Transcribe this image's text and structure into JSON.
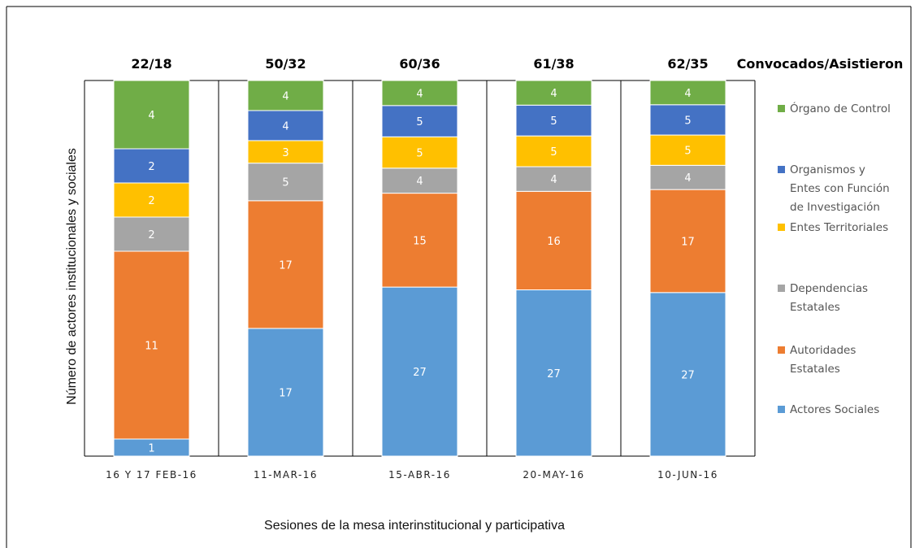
{
  "chart_data": {
    "type": "bar",
    "stacked": true,
    "title": "",
    "xlabel": "Sesiones de la mesa interinstitucional  y participativa",
    "ylabel": "Número de actores institucionales  y sociales",
    "categories": [
      "16 Y 17 FEB-16",
      "11-MAR-16",
      "15-ABR-16",
      "20-MAY-16",
      "10-JUN-16"
    ],
    "totals_header": "Convocados/Asistieron",
    "totals": [
      "22/18",
      "50/32",
      "60/36",
      "61/38",
      "62/35"
    ],
    "series": [
      {
        "name": "Actores Sociales",
        "color": "#5B9BD5",
        "values": [
          1,
          17,
          27,
          27,
          27
        ]
      },
      {
        "name": "Autoridades Estatales",
        "color": "#ED7D31",
        "values": [
          11,
          17,
          15,
          16,
          17
        ]
      },
      {
        "name": "Dependencias Estatales",
        "color": "#A5A5A5",
        "values": [
          2,
          5,
          4,
          4,
          4
        ]
      },
      {
        "name": "Entes Territoriales",
        "color": "#FFC000",
        "values": [
          2,
          3,
          5,
          5,
          5
        ]
      },
      {
        "name": "Organismos y Entes con Función de Investigación",
        "color": "#4472C4",
        "values": [
          2,
          4,
          5,
          5,
          5
        ]
      },
      {
        "name": "Órgano de Control",
        "color": "#70AD47",
        "values": [
          4,
          4,
          4,
          4,
          4
        ]
      }
    ],
    "legend_position": "right",
    "legend_lines": [
      [
        "Órgano de Control"
      ],
      [
        "Organismos y",
        "Entes con Función",
        "de Investigación"
      ],
      [
        "Entes Territoriales"
      ],
      [
        "Dependencias",
        "Estatales"
      ],
      [
        "Autoridades",
        "Estatales"
      ],
      [
        "Actores Sociales"
      ]
    ],
    "grid": false
  }
}
